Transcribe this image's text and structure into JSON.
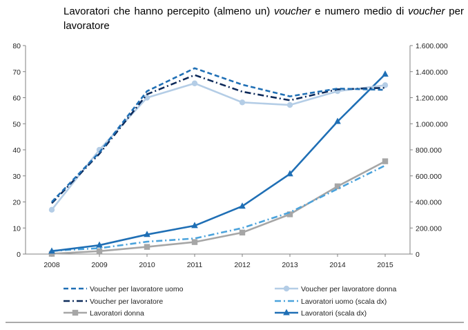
{
  "title": {
    "part1": "Lavoratori che hanno percepito (almeno un) ",
    "italic1": "voucher",
    "part2": " e numero medio di ",
    "italic2": "voucher",
    "part3": " per lavoratore"
  },
  "chart_data": {
    "type": "line",
    "categories": [
      "2008",
      "2009",
      "2010",
      "2011",
      "2012",
      "2013",
      "2014",
      "2015"
    ],
    "y_left": {
      "ylim": [
        0,
        80
      ],
      "ticks": [
        0,
        10,
        20,
        30,
        40,
        50,
        60,
        70,
        80
      ],
      "tick_labels": [
        "0",
        "10",
        "20",
        "30",
        "40",
        "50",
        "60",
        "70",
        "80"
      ]
    },
    "y_right": {
      "ylim": [
        0,
        1600000
      ],
      "ticks": [
        0,
        200000,
        400000,
        600000,
        800000,
        1000000,
        1200000,
        1400000,
        1600000
      ],
      "tick_labels": [
        "0",
        "200.000",
        "400.000",
        "600.000",
        "800.000",
        "1.000.000",
        "1.200.000",
        "1.400.000",
        "1.600.000"
      ]
    },
    "grid": false,
    "legend_position": "bottom",
    "series": [
      {
        "name": "Voucher per lavoratore uomo",
        "axis": "left",
        "color": "#1F6FB5",
        "style": "dash",
        "marker": "none",
        "values": [
          20,
          39,
          62.5,
          71.3,
          65,
          60.5,
          63.5,
          63
        ]
      },
      {
        "name": "Voucher per lavoratore donna",
        "axis": "left",
        "color": "#B4CDE6",
        "style": "solid",
        "marker": "circle",
        "values": [
          17,
          40,
          60,
          65.5,
          58.2,
          57.2,
          62.5,
          64.8
        ]
      },
      {
        "name": "Voucher per lavoratore",
        "axis": "left",
        "color": "#0D2A5A",
        "style": "dashdot",
        "marker": "none",
        "values": [
          19.5,
          38.5,
          61.3,
          68.7,
          62.3,
          59,
          63.2,
          63.8
        ]
      },
      {
        "name": "Lavoratori uomo (scala dx)",
        "axis": "right",
        "color": "#4BA3DC",
        "style": "dashdot",
        "marker": "none",
        "values": [
          25000,
          45000,
          95000,
          120000,
          200000,
          320000,
          500000,
          680000
        ]
      },
      {
        "name": "Lavoratori donna",
        "axis": "right",
        "color": "#A6A6A6",
        "style": "solid",
        "marker": "square",
        "values": [
          2000,
          22000,
          55000,
          92000,
          165000,
          305000,
          520000,
          712000
        ]
      },
      {
        "name": "Lavoratori (scala dx)",
        "axis": "right",
        "color": "#1F6FB5",
        "style": "solid",
        "marker": "triangle",
        "values": [
          22000,
          68000,
          150000,
          218000,
          367000,
          615000,
          1017000,
          1380000
        ]
      }
    ]
  }
}
